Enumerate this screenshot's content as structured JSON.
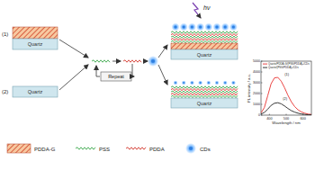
{
  "diagram": {
    "labels": {
      "stack1": "(1)",
      "stack2": "(2)"
    },
    "substrates": [
      "Quartz",
      "Quartz",
      "Quartz",
      "Quartz"
    ],
    "repeat": "Repeat",
    "light": "hν",
    "legend": [
      {
        "label": "PDDA-G"
      },
      {
        "label": "PSS"
      },
      {
        "label": "PDDA"
      },
      {
        "label": "CDs"
      }
    ]
  },
  "chart_data": {
    "type": "line",
    "x_label": "Wavelength / nm",
    "y_label": "PL intensity / a.u.",
    "x": [
      350,
      370,
      390,
      410,
      430,
      450,
      470,
      490,
      510,
      530,
      550,
      570,
      590,
      610,
      630,
      650
    ],
    "series": [
      {
        "name": "Quartz/PDDA-G/(PSS/PDDA)₅/CDs",
        "color": "#e8312f",
        "values": [
          200,
          700,
          1800,
          2900,
          3450,
          3500,
          3150,
          2550,
          1850,
          1250,
          800,
          500,
          300,
          180,
          100,
          60
        ]
      },
      {
        "name": "Quartz/(PSS/PDDA)₅/CDs",
        "color": "#222222",
        "values": [
          100,
          250,
          550,
          900,
          1100,
          1150,
          1050,
          850,
          620,
          420,
          280,
          180,
          110,
          70,
          40,
          20
        ]
      }
    ],
    "annotations": [
      {
        "text": "(1)",
        "x": 490,
        "y": 3700
      },
      {
        "text": "(2)",
        "x": 480,
        "y": 1400
      }
    ],
    "xlim": [
      350,
      650
    ],
    "xticks": [
      400,
      500,
      600
    ],
    "ylim": [
      0,
      5000
    ],
    "yticks": [
      0,
      1000,
      2000,
      3000,
      4000,
      5000
    ],
    "legend": "upper-right"
  }
}
